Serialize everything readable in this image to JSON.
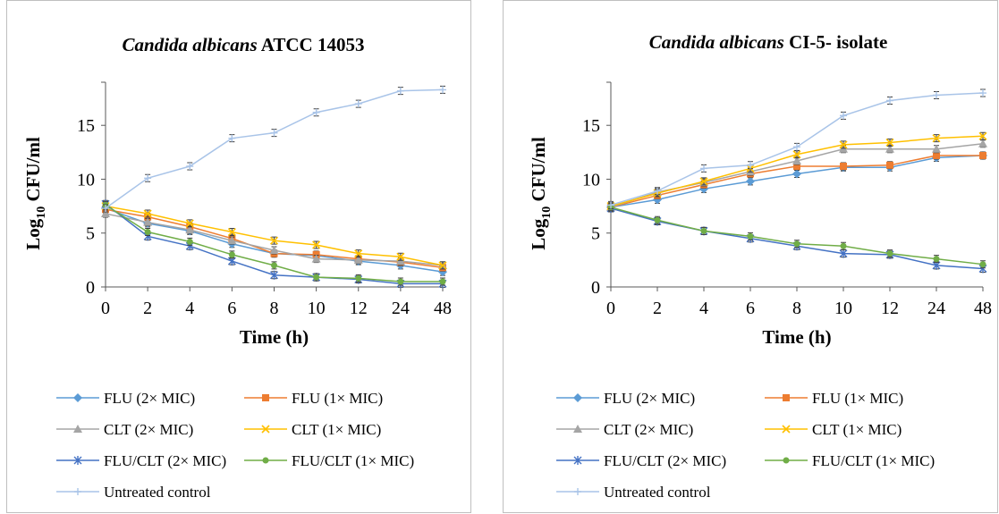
{
  "chart_data": [
    {
      "type": "line",
      "title_italic": "Candida albicans",
      "title_rest": " ATCC 14053",
      "ylabel_main": "Log",
      "ylabel_sub": "10",
      "ylabel_rest": " CFU/ml",
      "xlabel": "Time (h)",
      "categories": [
        "0",
        "2",
        "4",
        "6",
        "8",
        "10",
        "12",
        "24",
        "48"
      ],
      "yticks": [
        0,
        5,
        10,
        15
      ],
      "ylim": [
        0,
        19
      ],
      "legend_position": "bottom",
      "series": [
        {
          "name": "FLU (2× MIC)",
          "color": "#5b9bd5",
          "marker": "diamond",
          "values": [
            7.3,
            5.9,
            5.2,
            4.0,
            3.1,
            2.9,
            2.4,
            2.0,
            1.4
          ]
        },
        {
          "name": "FLU (1× MIC)",
          "color": "#ed7d31",
          "marker": "square",
          "values": [
            7.2,
            6.5,
            5.6,
            4.5,
            3.1,
            3.0,
            2.6,
            2.3,
            1.8
          ]
        },
        {
          "name": "CLT  (2× MIC)",
          "color": "#a5a5a5",
          "marker": "triangle",
          "values": [
            6.8,
            6.0,
            5.3,
            4.3,
            3.4,
            2.6,
            2.5,
            2.4,
            2.0
          ]
        },
        {
          "name": "CLT (1× MIC)",
          "color": "#ffc000",
          "marker": "x",
          "values": [
            7.5,
            6.8,
            5.9,
            5.1,
            4.3,
            3.9,
            3.1,
            2.8,
            2.0
          ]
        },
        {
          "name": "FLU/CLT  (2× MIC)",
          "color": "#4472c4",
          "marker": "star",
          "values": [
            7.7,
            4.7,
            3.8,
            2.4,
            1.1,
            0.9,
            0.7,
            0.3,
            0.3
          ]
        },
        {
          "name": "FLU/CLT  (1× MIC)",
          "color": "#70ad47",
          "marker": "circle",
          "values": [
            7.6,
            5.1,
            4.2,
            3.0,
            2.0,
            0.9,
            0.8,
            0.5,
            0.5
          ]
        },
        {
          "name": "Untreated control",
          "color": "#a9c4e8",
          "marker": "plus",
          "values": [
            7.3,
            10.1,
            11.2,
            13.8,
            14.3,
            16.2,
            17.0,
            18.2,
            18.3
          ]
        }
      ]
    },
    {
      "type": "line",
      "title_italic": "Candida albicans",
      "title_rest": " CI-5- isolate",
      "ylabel_main": "Log",
      "ylabel_sub": "10",
      "ylabel_rest": " CFU/ml",
      "xlabel": "Time (h)",
      "categories": [
        "0",
        "2",
        "4",
        "6",
        "8",
        "10",
        "12",
        "24",
        "48"
      ],
      "yticks": [
        0,
        5,
        10,
        15
      ],
      "ylim": [
        0,
        19
      ],
      "legend_position": "bottom",
      "series": [
        {
          "name": "FLU (2× MIC)",
          "color": "#5b9bd5",
          "marker": "diamond",
          "values": [
            7.4,
            8.1,
            9.1,
            9.8,
            10.5,
            11.1,
            11.1,
            12.0,
            12.2
          ]
        },
        {
          "name": "FLU (1× MIC)",
          "color": "#ed7d31",
          "marker": "square",
          "values": [
            7.4,
            8.5,
            9.5,
            10.5,
            11.2,
            11.2,
            11.3,
            12.2,
            12.2
          ]
        },
        {
          "name": "CLT  (2× MIC)",
          "color": "#a5a5a5",
          "marker": "triangle",
          "values": [
            7.4,
            8.8,
            9.7,
            10.7,
            11.7,
            12.8,
            12.8,
            12.8,
            13.3
          ]
        },
        {
          "name": "CLT (1× MIC)",
          "color": "#ffc000",
          "marker": "x",
          "values": [
            7.5,
            8.7,
            9.8,
            11.0,
            12.3,
            13.2,
            13.4,
            13.8,
            14.0
          ]
        },
        {
          "name": "FLU/CLT  (2× MIC)",
          "color": "#4472c4",
          "marker": "star",
          "values": [
            7.3,
            6.1,
            5.2,
            4.5,
            3.8,
            3.1,
            3.0,
            2.0,
            1.7
          ]
        },
        {
          "name": "FLU/CLT  (1× MIC)",
          "color": "#70ad47",
          "marker": "circle",
          "values": [
            7.4,
            6.2,
            5.2,
            4.7,
            4.0,
            3.8,
            3.1,
            2.6,
            2.1
          ]
        },
        {
          "name": "Untreated control",
          "color": "#a9c4e8",
          "marker": "plus",
          "values": [
            7.6,
            8.9,
            11.0,
            11.3,
            13.0,
            15.9,
            17.3,
            17.8,
            18.0
          ]
        }
      ]
    }
  ]
}
